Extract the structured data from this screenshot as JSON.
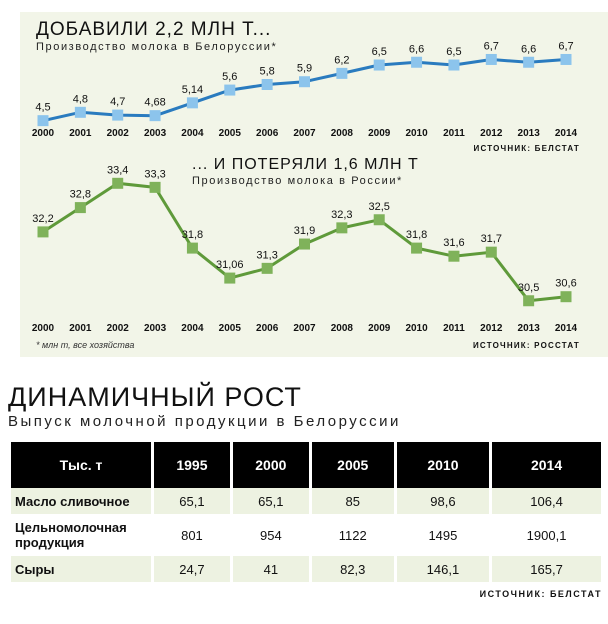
{
  "chart_data": [
    {
      "type": "line",
      "title": "ДОБАВИЛИ 2,2 МЛН Т...",
      "subtitle": "Производство молока в Белоруссии*",
      "categories": [
        "2000",
        "2001",
        "2002",
        "2003",
        "2004",
        "2005",
        "2006",
        "2007",
        "2008",
        "2009",
        "2010",
        "2011",
        "2012",
        "2013",
        "2014"
      ],
      "values": [
        4.5,
        4.8,
        4.7,
        4.68,
        5.14,
        5.6,
        5.8,
        5.9,
        6.2,
        6.5,
        6.6,
        6.5,
        6.7,
        6.6,
        6.7
      ],
      "value_labels": [
        "4,5",
        "4,8",
        "4,7",
        "4,68",
        "5,14",
        "5,6",
        "5,8",
        "5,9",
        "6,2",
        "6,5",
        "6,6",
        "6,5",
        "6,7",
        "6,6",
        "6,7"
      ],
      "ylim": [
        4.2,
        7.4
      ],
      "color": "#2a7bbf",
      "marker_color": "#8cc4ec",
      "source": "ИСТОЧНИК: БЕЛСТАТ"
    },
    {
      "type": "line",
      "title": "... И ПОТЕРЯЛИ 1,6 МЛН Т",
      "subtitle": "Производство молока в России*",
      "categories": [
        "2000",
        "2001",
        "2002",
        "2003",
        "2004",
        "2005",
        "2006",
        "2007",
        "2008",
        "2009",
        "2010",
        "2011",
        "2012",
        "2013",
        "2014"
      ],
      "values": [
        32.2,
        32.8,
        33.4,
        33.3,
        31.8,
        31.06,
        31.3,
        31.9,
        32.3,
        32.5,
        31.8,
        31.6,
        31.7,
        30.5,
        30.6
      ],
      "value_labels": [
        "32,2",
        "32,8",
        "33,4",
        "33,3",
        "31,8",
        "31,06",
        "31,3",
        "31,9",
        "32,3",
        "32,5",
        "31,8",
        "31,6",
        "31,7",
        "30,5",
        "30,6"
      ],
      "ylim": [
        30.0,
        34.0
      ],
      "color": "#5f9a3a",
      "marker_color": "#7fb25a",
      "source": "ИСТОЧНИК: РОССТАТ"
    }
  ],
  "footnote": "* млн т, все хозяйства",
  "table": {
    "title": "ДИНАМИЧНЫЙ РОСТ",
    "subtitle": "Выпуск молочной продукции в Белоруссии",
    "header": [
      "Тыс. т",
      "1995",
      "2000",
      "2005",
      "2010",
      "2014"
    ],
    "rows": [
      {
        "label": "Масло сливочное",
        "values": [
          "65,1",
          "65,1",
          "85",
          "98,6",
          "106,4"
        ]
      },
      {
        "label": "Цельномолочная продукция",
        "values": [
          "801",
          "954",
          "1122",
          "1495",
          "1900,1"
        ]
      },
      {
        "label": "Сыры",
        "values": [
          "24,7",
          "41",
          "82,3",
          "146,1",
          "165,7"
        ]
      }
    ],
    "source": "ИСТОЧНИК: БЕЛСТАТ"
  }
}
